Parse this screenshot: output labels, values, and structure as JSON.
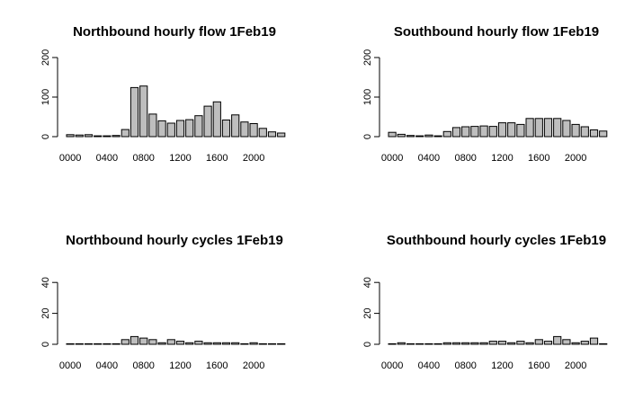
{
  "chart_data": [
    {
      "type": "bar",
      "title": "Northbound hourly flow 1Feb19",
      "categories": [
        "0000",
        "0100",
        "0200",
        "0300",
        "0400",
        "0500",
        "0600",
        "0700",
        "0800",
        "0900",
        "1000",
        "1100",
        "1200",
        "1300",
        "1400",
        "1500",
        "1600",
        "1700",
        "1800",
        "1900",
        "2000",
        "2100",
        "2200",
        "2300"
      ],
      "x_tick_labels": [
        "0000",
        "0400",
        "0800",
        "1200",
        "1600",
        "2000"
      ],
      "values": [
        5,
        4,
        5,
        2,
        2,
        3,
        18,
        124,
        128,
        57,
        40,
        34,
        41,
        43,
        53,
        77,
        88,
        42,
        55,
        37,
        33,
        21,
        12,
        9
      ],
      "ylim": [
        0,
        200
      ],
      "yticks": [
        0,
        100,
        200
      ]
    },
    {
      "type": "bar",
      "title": "Southbound hourly flow 1Feb19",
      "categories": [
        "0000",
        "0100",
        "0200",
        "0300",
        "0400",
        "0500",
        "0600",
        "0700",
        "0800",
        "0900",
        "1000",
        "1100",
        "1200",
        "1300",
        "1400",
        "1500",
        "1600",
        "1700",
        "1800",
        "1900",
        "2000",
        "2100",
        "2200",
        "2300"
      ],
      "x_tick_labels": [
        "0000",
        "0400",
        "0800",
        "1200",
        "1600",
        "2000"
      ],
      "values": [
        11,
        6,
        3,
        2,
        4,
        2,
        13,
        23,
        25,
        26,
        27,
        26,
        35,
        35,
        31,
        46,
        46,
        46,
        46,
        41,
        31,
        25,
        17,
        14
      ],
      "ylim": [
        0,
        200
      ],
      "yticks": [
        0,
        100,
        200
      ]
    },
    {
      "type": "bar",
      "title": "Northbound hourly cycles 1Feb19",
      "categories": [
        "0000",
        "0100",
        "0200",
        "0300",
        "0400",
        "0500",
        "0600",
        "0700",
        "0800",
        "0900",
        "1000",
        "1100",
        "1200",
        "1300",
        "1400",
        "1500",
        "1600",
        "1700",
        "1800",
        "1900",
        "2000",
        "2100",
        "2200",
        "2300"
      ],
      "x_tick_labels": [
        "0000",
        "0400",
        "0800",
        "1200",
        "1600",
        "2000"
      ],
      "values": [
        0,
        0,
        0,
        0,
        0,
        0,
        3,
        5,
        4,
        3,
        1,
        3,
        2,
        1,
        2,
        1,
        1,
        1,
        1,
        0,
        1,
        0,
        0,
        0
      ],
      "ylim": [
        0,
        50
      ],
      "yticks": [
        0,
        20,
        40
      ]
    },
    {
      "type": "bar",
      "title": "Southbound hourly cycles 1Feb19",
      "categories": [
        "0000",
        "0100",
        "0200",
        "0300",
        "0400",
        "0500",
        "0600",
        "0700",
        "0800",
        "0900",
        "1000",
        "1100",
        "1200",
        "1300",
        "1400",
        "1500",
        "1600",
        "1700",
        "1800",
        "1900",
        "2000",
        "2100",
        "2200",
        "2300"
      ],
      "x_tick_labels": [
        "0000",
        "0400",
        "0800",
        "1200",
        "1600",
        "2000"
      ],
      "values": [
        0,
        1,
        0,
        0,
        0,
        0,
        1,
        1,
        1,
        1,
        1,
        2,
        2,
        1,
        2,
        1,
        3,
        2,
        5,
        3,
        1,
        2,
        4,
        0
      ],
      "ylim": [
        0,
        50
      ],
      "yticks": [
        0,
        20,
        40
      ]
    }
  ]
}
